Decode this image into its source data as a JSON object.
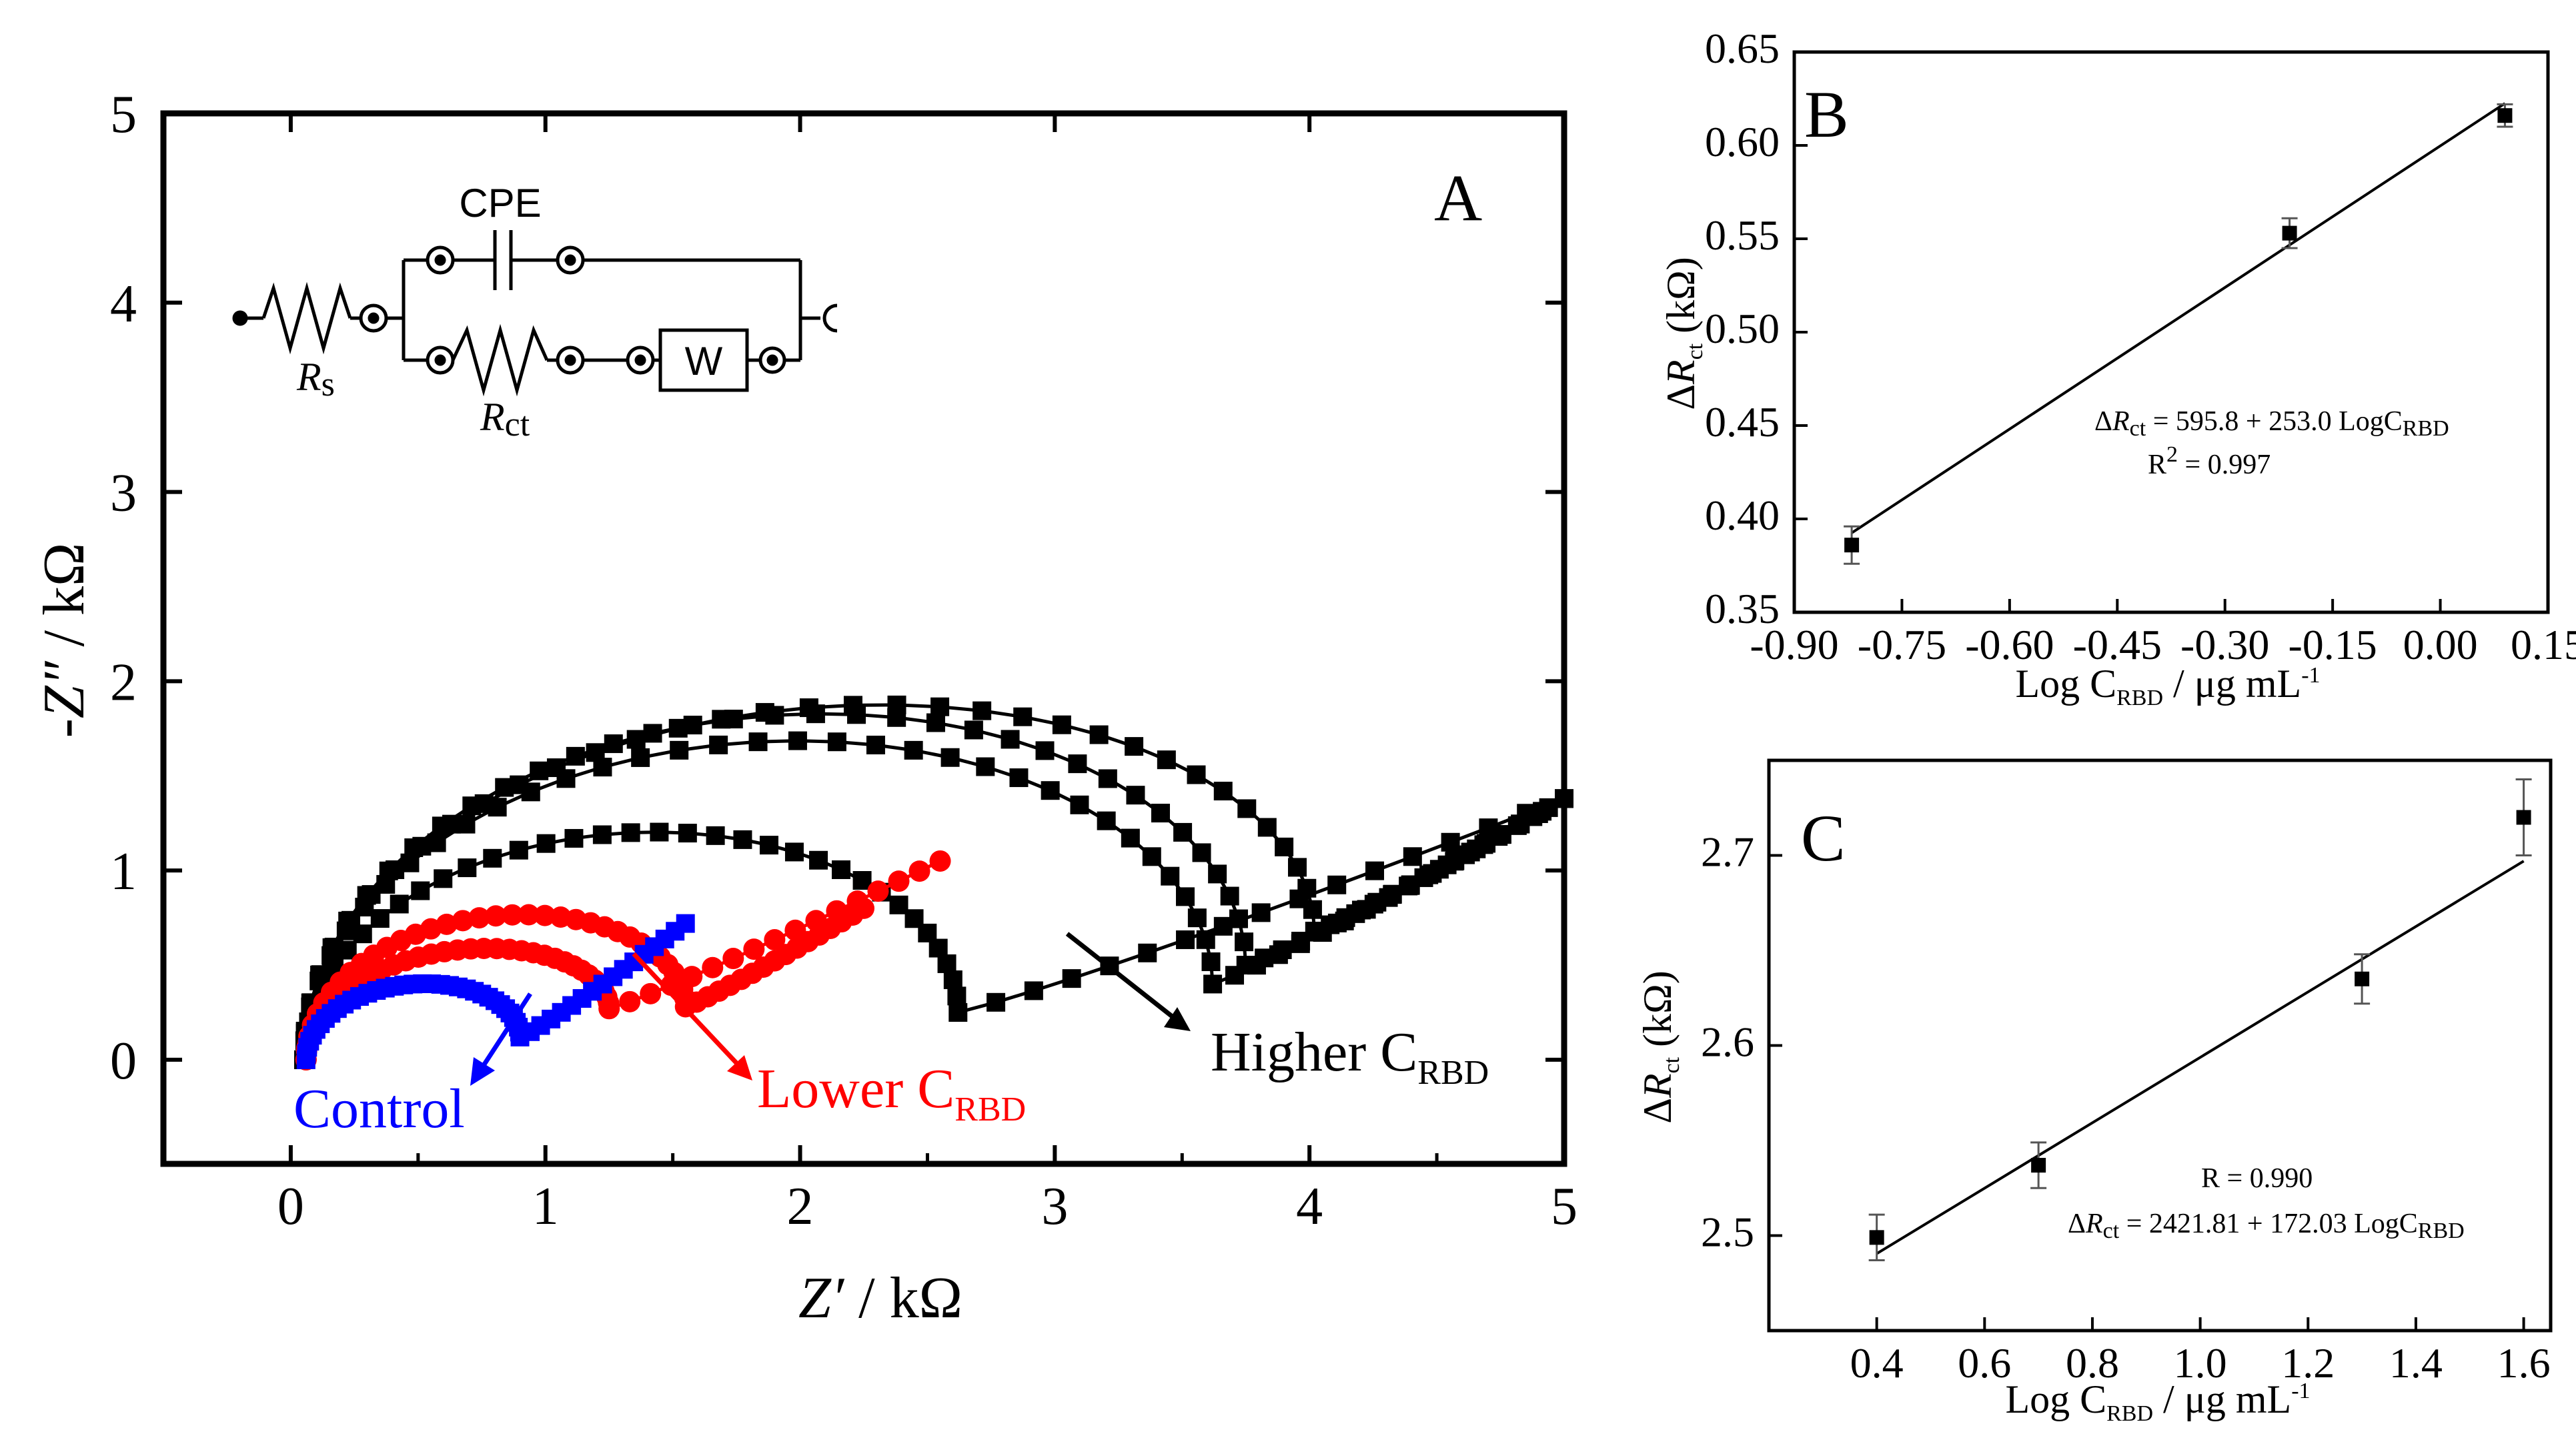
{
  "chart_data": [
    {
      "panel": "A",
      "type": "scatter",
      "letter": "A",
      "xlabel_main": "Z′",
      "xlabel_unit": " / kΩ",
      "ylabel_main": "-Z″",
      "ylabel_unit": " / kΩ",
      "xlim": [
        -0.5,
        5
      ],
      "ylim": [
        -0.55,
        5
      ],
      "xticks": [
        "0",
        "1",
        "2",
        "3",
        "4",
        "5"
      ],
      "yticks": [
        "0",
        "1",
        "2",
        "3",
        "4",
        "5"
      ],
      "series": [
        {
          "name": "Higher CRBD #1",
          "color": "#000000",
          "marker": "square",
          "peak_x": 1.35,
          "peak_y": 1.2,
          "min_x": 2.62,
          "min_y": 0.25,
          "arc_start": 0.05,
          "tail_end_x": 5.0,
          "tail_end_y": 1.38
        },
        {
          "name": "Higher CRBD #2",
          "color": "#000000",
          "marker": "square",
          "peak_x": 1.9,
          "peak_y": 1.68,
          "min_x": 3.62,
          "min_y": 0.4,
          "arc_start": 0.05,
          "tail_end_x": 5.0,
          "tail_end_y": 1.38
        },
        {
          "name": "Higher CRBD #3",
          "color": "#000000",
          "marker": "square",
          "peak_x": 2.0,
          "peak_y": 1.82,
          "min_x": 3.75,
          "min_y": 0.5,
          "arc_start": 0.05,
          "tail_end_x": 4.9,
          "tail_end_y": 1.3
        },
        {
          "name": "Higher CRBD #4",
          "color": "#000000",
          "marker": "square",
          "peak_x": 2.05,
          "peak_y": 1.86,
          "min_x": 4.02,
          "min_y": 0.68,
          "arc_start": 0.05,
          "tail_end_x": 5.0,
          "tail_end_y": 1.38
        },
        {
          "name": "Lower CRBD #1",
          "color": "#ff0000",
          "marker": "circle",
          "peak_x": 0.72,
          "peak_y": 0.58,
          "min_x": 1.25,
          "min_y": 0.27,
          "arc_start": 0.06,
          "tail_end_x": 2.55,
          "tail_end_y": 1.05
        },
        {
          "name": "Lower CRBD #2",
          "color": "#ff0000",
          "marker": "circle",
          "peak_x": 0.85,
          "peak_y": 0.76,
          "min_x": 1.55,
          "min_y": 0.28,
          "arc_start": 0.06,
          "tail_end_x": 2.25,
          "tail_end_y": 0.8
        },
        {
          "name": "Control",
          "color": "#0000ff",
          "marker": "square",
          "peak_x": 0.48,
          "peak_y": 0.4,
          "min_x": 0.9,
          "min_y": 0.12,
          "arc_start": 0.06,
          "tail_end_x": 1.55,
          "tail_end_y": 0.72
        }
      ],
      "labels": {
        "control": "Control",
        "lower": "Lower C",
        "higher": "Higher C",
        "subscript": "RBD"
      },
      "label_colors": {
        "control": "#0000ff",
        "lower": "#ff0000",
        "higher": "#000000"
      },
      "circuit": {
        "cpe": "CPE",
        "w": "W",
        "rs": "R",
        "rs_sub": "s",
        "rct": "R",
        "rct_sub": "ct"
      }
    },
    {
      "panel": "B",
      "type": "scatter",
      "letter": "B",
      "x": [
        -0.82,
        -0.21,
        0.09
      ],
      "y": [
        0.386,
        0.553,
        0.616
      ],
      "yerr": [
        0.01,
        0.008,
        0.006
      ],
      "fit": {
        "x1": -0.82,
        "y1": 0.3925,
        "x2": 0.09,
        "y2": 0.6225
      },
      "xlim": [
        -0.9,
        0.15
      ],
      "ylim": [
        0.35,
        0.65
      ],
      "xticks": [
        "-0.90",
        "-0.75",
        "-0.60",
        "-0.45",
        "-0.30",
        "-0.15",
        "0.00",
        "0.15"
      ],
      "yticks": [
        "0.35",
        "0.40",
        "0.45",
        "0.50",
        "0.55",
        "0.60",
        "0.65"
      ],
      "xlabel": "Log C",
      "xlabel_sub": "RBD",
      "xlabel_unit": " / μg mL",
      "xlabel_sup": "-1",
      "ylabel": "ΔR",
      "ylabel_sub": "ct",
      "ylabel_unit": " (kΩ)",
      "equation_left": "ΔR",
      "equation_sub": "ct",
      "equation_right": " = 595.8 + 253.0 LogC",
      "equation_sub2": "RBD",
      "r2_label": "R",
      "r2_sup": "2",
      "r2_value": " = 0.997"
    },
    {
      "panel": "C",
      "type": "scatter",
      "letter": "C",
      "x": [
        0.4,
        0.7,
        1.3,
        1.6
      ],
      "y": [
        2.499,
        2.537,
        2.635,
        2.72
      ],
      "yerr": [
        0.012,
        0.012,
        0.013,
        0.02
      ],
      "fit": {
        "x1": 0.4,
        "y1": 2.4905,
        "x2": 1.6,
        "y2": 2.697
      },
      "xlim": [
        0.2,
        1.65
      ],
      "ylim": [
        2.45,
        2.75
      ],
      "xticks": [
        "0.4",
        "0.6",
        "0.8",
        "1.0",
        "1.2",
        "1.4",
        "1.6"
      ],
      "yticks": [
        "2.5",
        "2.6",
        "2.7"
      ],
      "ytick_values": [
        2.5,
        2.6,
        2.7
      ],
      "xtick_values": [
        0.4,
        0.6,
        0.8,
        1.0,
        1.2,
        1.4,
        1.6
      ],
      "xlabel": "Log C",
      "xlabel_sub": "RBD",
      "xlabel_unit": " / μg mL",
      "xlabel_sup": "-1",
      "ylabel": "ΔR",
      "ylabel_sub": "ct",
      "ylabel_unit": " (kΩ)",
      "r_label": "R = 0.990",
      "equation_left": "ΔR",
      "equation_sub": "ct",
      "equation_right": " = 2421.81 + 172.03 LogC",
      "equation_sub2": "RBD"
    }
  ]
}
